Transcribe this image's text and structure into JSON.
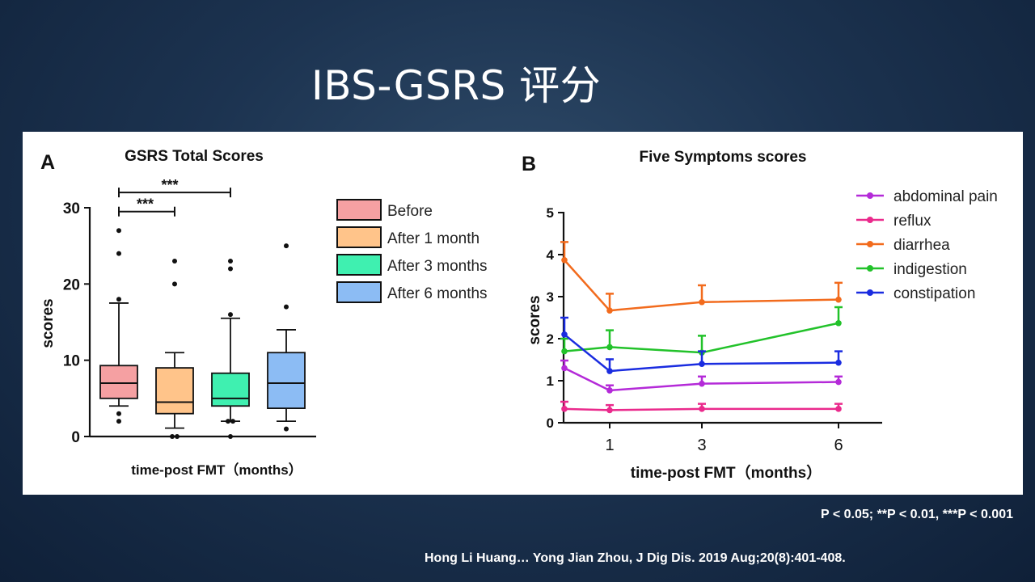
{
  "slide": {
    "title": "IBS-GSRS 评分",
    "pvalue_note": "P < 0.05; **P < 0.01, ***P < 0.001",
    "citation": "Hong Li Huang… Yong Jian Zhou, J Dig Dis. 2019 Aug;20(8):401-408."
  },
  "chart_data": [
    {
      "panel_label": "A",
      "type": "box",
      "title": "GSRS Total Scores",
      "xlabel": "time-post FMT（months）",
      "ylabel": "scores",
      "ylim": [
        0,
        30
      ],
      "yticks": [
        0,
        10,
        20,
        30
      ],
      "legend_position": "right",
      "groups": [
        {
          "name": "Before",
          "color": "#f5a0a2",
          "whisker_low": 4,
          "q1": 5,
          "median": 7,
          "q3": 9.3,
          "whisker_high": 17.5,
          "outliers": [
            2,
            3,
            18,
            24,
            27
          ]
        },
        {
          "name": "After 1 month",
          "color": "#ffc48a",
          "whisker_low": 1.1,
          "q1": 3,
          "median": 4.5,
          "q3": 9,
          "whisker_high": 11,
          "outliers": [
            0,
            0,
            20,
            23
          ]
        },
        {
          "name": "After 3 months",
          "color": "#3ff0b0",
          "whisker_low": 2,
          "q1": 4,
          "median": 5,
          "q3": 8.3,
          "whisker_high": 15.5,
          "outliers": [
            0,
            2,
            2,
            16,
            22,
            23
          ]
        },
        {
          "name": "After 6 months",
          "color": "#8cbcf4",
          "whisker_low": 2,
          "q1": 3.7,
          "median": 7,
          "q3": 11,
          "whisker_high": 14,
          "outliers": [
            1,
            17,
            25
          ]
        }
      ],
      "significance": [
        {
          "from": 0,
          "to": 1,
          "label": "***",
          "y": 29.5
        },
        {
          "from": 0,
          "to": 2,
          "label": "***",
          "y": 32
        }
      ]
    },
    {
      "panel_label": "B",
      "type": "line",
      "title": "Five Symptoms scores",
      "xlabel": "time-post FMT（months）",
      "ylabel": "scores",
      "x": [
        0,
        1,
        3,
        6
      ],
      "xtick_labels": [
        "",
        "1",
        "3",
        "6"
      ],
      "ylim": [
        0,
        5
      ],
      "yticks": [
        0,
        1,
        2,
        3,
        4,
        5
      ],
      "legend_position": "top-right",
      "series": [
        {
          "name": "abdominal pain",
          "color": "#b42ad8",
          "values": [
            1.3,
            0.77,
            0.93,
            0.97
          ],
          "errors": [
            0.18,
            0.12,
            0.17,
            0.13
          ]
        },
        {
          "name": "reflux",
          "color": "#ea2a8c",
          "values": [
            0.33,
            0.3,
            0.33,
            0.33
          ],
          "errors": [
            0.17,
            0.12,
            0.12,
            0.12
          ]
        },
        {
          "name": "diarrhea",
          "color": "#f26b1d",
          "values": [
            3.87,
            2.67,
            2.87,
            2.93
          ],
          "errors": [
            0.43,
            0.4,
            0.4,
            0.4
          ]
        },
        {
          "name": "indigestion",
          "color": "#22c22a",
          "values": [
            1.7,
            1.8,
            1.67,
            2.37
          ],
          "errors": [
            0.3,
            0.4,
            0.4,
            0.38
          ]
        },
        {
          "name": "constipation",
          "color": "#1a2ce0",
          "values": [
            2.1,
            1.23,
            1.4,
            1.43
          ],
          "errors": [
            0.4,
            0.28,
            0.3,
            0.27
          ]
        }
      ]
    }
  ]
}
